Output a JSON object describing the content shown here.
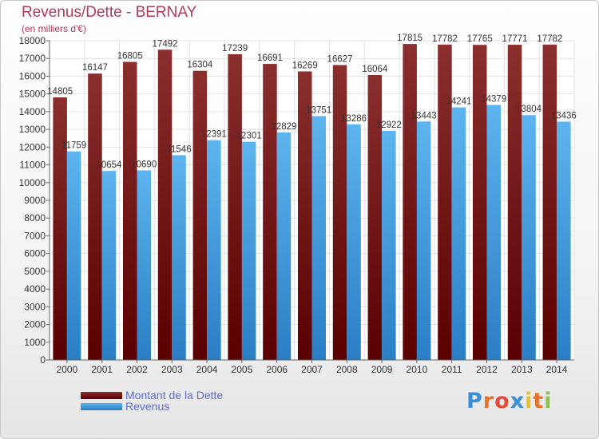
{
  "chart_data": {
    "type": "bar",
    "title": "Revenus/Dette - BERNAY",
    "subtitle": "(en milliers d'€)",
    "categories": [
      "2000",
      "2001",
      "2002",
      "2003",
      "2004",
      "2005",
      "2006",
      "2007",
      "2008",
      "2009",
      "2010",
      "2011",
      "2012",
      "2013",
      "2014"
    ],
    "series": [
      {
        "name": "Montant de la Dette",
        "color": "#7b1a1a",
        "values": [
          14805,
          16147,
          16805,
          17492,
          16304,
          17239,
          16691,
          16269,
          16627,
          16064,
          17815,
          17782,
          17765,
          17771,
          17782
        ]
      },
      {
        "name": "Revenus",
        "color": "#4fa8e6",
        "values": [
          11759,
          10654,
          10690,
          11546,
          12391,
          12301,
          12829,
          13751,
          13286,
          12922,
          13443,
          14241,
          14379,
          13804,
          13436
        ]
      }
    ],
    "ylim": [
      0,
      18000
    ],
    "ytick_step": 1000,
    "grid": true,
    "legend": "bottom-left"
  },
  "logo": {
    "letters": [
      "P",
      "r",
      "o",
      "x",
      "i",
      "t",
      "i"
    ],
    "colors": [
      "#3a8fd8",
      "#e8702a",
      "#e84a3a",
      "#3a8fd8",
      "#e8c02a",
      "#e8702a",
      "#8bc34a"
    ]
  }
}
